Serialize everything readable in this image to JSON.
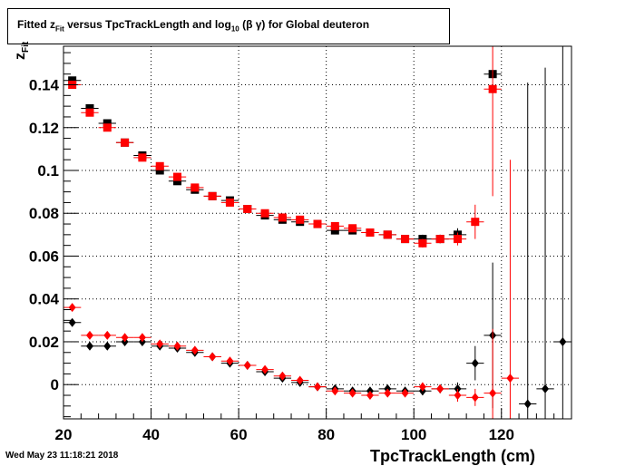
{
  "header": {
    "title_pre": "Fitted  z",
    "title_sub": "Fit",
    "title_mid": " versus TpcTrackLength and log",
    "title_sub2": "10",
    "title_post": " (β γ) for Global deuteron"
  },
  "footer": {
    "timestamp": "Wed May 23 11:18:21 2018"
  },
  "chart_data": {
    "type": "scatter",
    "title": "Fitted zFit versus TpcTrackLength and log10 (β γ) for Global deuteron",
    "xlabel": "TpcTrackLength (cm)",
    "ylabel_main": "z",
    "ylabel_sub": "Fit",
    "xlim": [
      20,
      136
    ],
    "ylim": [
      -0.016,
      0.158
    ],
    "grid": true,
    "x_ticks": [
      20,
      40,
      60,
      80,
      100,
      120
    ],
    "x_tick_labels": [
      "20",
      "40",
      "60",
      "80",
      "100",
      "120"
    ],
    "y_ticks": [
      0,
      0.02,
      0.04,
      0.06,
      0.08,
      0.1,
      0.12,
      0.14
    ],
    "y_tick_labels": [
      "0",
      "0.02",
      "0.04",
      "0.06",
      "0.08",
      "0.1",
      "0.12",
      "0.14"
    ],
    "x_half_width": 2,
    "series": [
      {
        "marker": "square",
        "color": "#000000",
        "points": [
          {
            "x": 22,
            "y": 0.142,
            "e": 0.001
          },
          {
            "x": 26,
            "y": 0.129,
            "e": 0.001
          },
          {
            "x": 30,
            "y": 0.122,
            "e": 0.001
          },
          {
            "x": 34,
            "y": 0.113,
            "e": 0.001
          },
          {
            "x": 38,
            "y": 0.107,
            "e": 0.001
          },
          {
            "x": 42,
            "y": 0.1,
            "e": 0.001
          },
          {
            "x": 46,
            "y": 0.095,
            "e": 0.001
          },
          {
            "x": 50,
            "y": 0.091,
            "e": 0.001
          },
          {
            "x": 54,
            "y": 0.088,
            "e": 0.001
          },
          {
            "x": 58,
            "y": 0.086,
            "e": 0.001
          },
          {
            "x": 62,
            "y": 0.082,
            "e": 0.001
          },
          {
            "x": 66,
            "y": 0.079,
            "e": 0.001
          },
          {
            "x": 70,
            "y": 0.077,
            "e": 0.001
          },
          {
            "x": 74,
            "y": 0.076,
            "e": 0.001
          },
          {
            "x": 78,
            "y": 0.075,
            "e": 0.001
          },
          {
            "x": 82,
            "y": 0.072,
            "e": 0.001
          },
          {
            "x": 86,
            "y": 0.072,
            "e": 0.001
          },
          {
            "x": 90,
            "y": 0.071,
            "e": 0.001
          },
          {
            "x": 94,
            "y": 0.07,
            "e": 0.001
          },
          {
            "x": 98,
            "y": 0.068,
            "e": 0.001
          },
          {
            "x": 102,
            "y": 0.068,
            "e": 0.002
          },
          {
            "x": 106,
            "y": 0.068,
            "e": 0.002
          },
          {
            "x": 110,
            "y": 0.07,
            "e": 0.003
          },
          {
            "x": 118,
            "y": 0.145,
            "e": 0.0
          }
        ]
      },
      {
        "marker": "square",
        "color": "#ff0000",
        "points": [
          {
            "x": 22,
            "y": 0.14,
            "e": 0.001
          },
          {
            "x": 26,
            "y": 0.127,
            "e": 0.001
          },
          {
            "x": 30,
            "y": 0.12,
            "e": 0.001
          },
          {
            "x": 34,
            "y": 0.113,
            "e": 0.001
          },
          {
            "x": 38,
            "y": 0.106,
            "e": 0.001
          },
          {
            "x": 42,
            "y": 0.102,
            "e": 0.001
          },
          {
            "x": 46,
            "y": 0.097,
            "e": 0.001
          },
          {
            "x": 50,
            "y": 0.092,
            "e": 0.001
          },
          {
            "x": 54,
            "y": 0.088,
            "e": 0.001
          },
          {
            "x": 58,
            "y": 0.085,
            "e": 0.001
          },
          {
            "x": 62,
            "y": 0.082,
            "e": 0.001
          },
          {
            "x": 66,
            "y": 0.08,
            "e": 0.001
          },
          {
            "x": 70,
            "y": 0.078,
            "e": 0.001
          },
          {
            "x": 74,
            "y": 0.077,
            "e": 0.001
          },
          {
            "x": 78,
            "y": 0.075,
            "e": 0.001
          },
          {
            "x": 82,
            "y": 0.074,
            "e": 0.001
          },
          {
            "x": 86,
            "y": 0.073,
            "e": 0.001
          },
          {
            "x": 90,
            "y": 0.071,
            "e": 0.001
          },
          {
            "x": 94,
            "y": 0.07,
            "e": 0.001
          },
          {
            "x": 98,
            "y": 0.068,
            "e": 0.001
          },
          {
            "x": 102,
            "y": 0.066,
            "e": 0.002
          },
          {
            "x": 106,
            "y": 0.068,
            "e": 0.002
          },
          {
            "x": 110,
            "y": 0.068,
            "e": 0.003
          },
          {
            "x": 114,
            "y": 0.076,
            "e": 0.008
          },
          {
            "x": 118,
            "y": 0.138,
            "e": 0.05
          }
        ]
      },
      {
        "marker": "diamond",
        "color": "#000000",
        "points": [
          {
            "x": 22,
            "y": 0.029,
            "e": 0.001
          },
          {
            "x": 26,
            "y": 0.018,
            "e": 0.001
          },
          {
            "x": 30,
            "y": 0.018,
            "e": 0.001
          },
          {
            "x": 34,
            "y": 0.02,
            "e": 0.001
          },
          {
            "x": 38,
            "y": 0.02,
            "e": 0.001
          },
          {
            "x": 42,
            "y": 0.018,
            "e": 0.001
          },
          {
            "x": 46,
            "y": 0.017,
            "e": 0.001
          },
          {
            "x": 50,
            "y": 0.015,
            "e": 0.001
          },
          {
            "x": 54,
            "y": 0.013,
            "e": 0.001
          },
          {
            "x": 58,
            "y": 0.01,
            "e": 0.001
          },
          {
            "x": 62,
            "y": 0.009,
            "e": 0.001
          },
          {
            "x": 66,
            "y": 0.006,
            "e": 0.001
          },
          {
            "x": 70,
            "y": 0.003,
            "e": 0.001
          },
          {
            "x": 74,
            "y": 0.001,
            "e": 0.001
          },
          {
            "x": 78,
            "y": -0.001,
            "e": 0.001
          },
          {
            "x": 82,
            "y": -0.002,
            "e": 0.001
          },
          {
            "x": 86,
            "y": -0.003,
            "e": 0.001
          },
          {
            "x": 90,
            "y": -0.003,
            "e": 0.001
          },
          {
            "x": 94,
            "y": -0.002,
            "e": 0.001
          },
          {
            "x": 98,
            "y": -0.003,
            "e": 0.001
          },
          {
            "x": 102,
            "y": -0.003,
            "e": 0.002
          },
          {
            "x": 106,
            "y": -0.002,
            "e": 0.002
          },
          {
            "x": 110,
            "y": -0.002,
            "e": 0.003
          },
          {
            "x": 114,
            "y": 0.01,
            "e": 0.008
          },
          {
            "x": 118,
            "y": 0.023,
            "e": 0.034
          },
          {
            "x": 126,
            "y": -0.009,
            "e": 0.15
          },
          {
            "x": 130,
            "y": -0.002,
            "e": 0.15
          },
          {
            "x": 134,
            "y": 0.02,
            "e": 0.15
          }
        ]
      },
      {
        "marker": "diamond",
        "color": "#ff0000",
        "points": [
          {
            "x": 22,
            "y": 0.036,
            "e": 0.001
          },
          {
            "x": 26,
            "y": 0.023,
            "e": 0.001
          },
          {
            "x": 30,
            "y": 0.023,
            "e": 0.001
          },
          {
            "x": 34,
            "y": 0.022,
            "e": 0.001
          },
          {
            "x": 38,
            "y": 0.022,
            "e": 0.001
          },
          {
            "x": 42,
            "y": 0.019,
            "e": 0.001
          },
          {
            "x": 46,
            "y": 0.018,
            "e": 0.001
          },
          {
            "x": 50,
            "y": 0.016,
            "e": 0.001
          },
          {
            "x": 54,
            "y": 0.013,
            "e": 0.001
          },
          {
            "x": 58,
            "y": 0.011,
            "e": 0.001
          },
          {
            "x": 62,
            "y": 0.009,
            "e": 0.001
          },
          {
            "x": 66,
            "y": 0.007,
            "e": 0.001
          },
          {
            "x": 70,
            "y": 0.004,
            "e": 0.001
          },
          {
            "x": 74,
            "y": 0.002,
            "e": 0.001
          },
          {
            "x": 78,
            "y": -0.001,
            "e": 0.001
          },
          {
            "x": 82,
            "y": -0.003,
            "e": 0.001
          },
          {
            "x": 86,
            "y": -0.004,
            "e": 0.001
          },
          {
            "x": 90,
            "y": -0.005,
            "e": 0.001
          },
          {
            "x": 94,
            "y": -0.004,
            "e": 0.001
          },
          {
            "x": 98,
            "y": -0.004,
            "e": 0.001
          },
          {
            "x": 102,
            "y": -0.001,
            "e": 0.002
          },
          {
            "x": 106,
            "y": -0.002,
            "e": 0.002
          },
          {
            "x": 110,
            "y": -0.005,
            "e": 0.003
          },
          {
            "x": 114,
            "y": -0.006,
            "e": 0.004
          },
          {
            "x": 118,
            "y": -0.004,
            "e": 0.03
          },
          {
            "x": 122,
            "y": 0.003,
            "e": 0.102
          }
        ]
      }
    ]
  }
}
